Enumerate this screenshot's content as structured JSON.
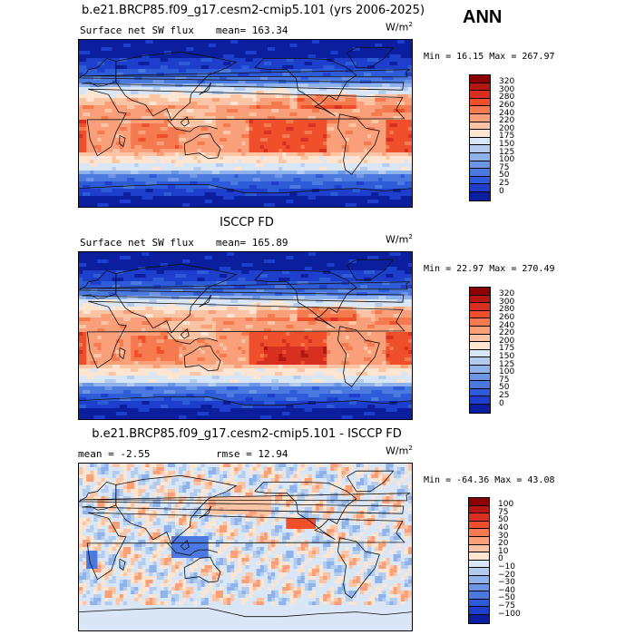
{
  "season": "ANN",
  "panels": [
    {
      "title": "b.e21.BRCP85.f09_g17.cesm2-cmip5.101 (yrs 2006-2025)",
      "left_label": "Surface net SW flux",
      "mean_label": "mean= 163.34",
      "units": "W/m",
      "units_exp": "2",
      "minmax": "Min =  16.15 Max = 267.97",
      "colorbar": {
        "labels": [
          "320",
          "300",
          "280",
          "260",
          "240",
          "220",
          "200",
          "175",
          "150",
          "125",
          "100",
          "75",
          "50",
          "25",
          "0"
        ],
        "colors": [
          "#8b0000",
          "#b2180f",
          "#d73020",
          "#ef4f2a",
          "#f67a50",
          "#f9a07a",
          "#fbc4a4",
          "#fde5d2",
          "#d9e6f5",
          "#b4cdef",
          "#8fb2eb",
          "#6c95e6",
          "#4c79e0",
          "#2e5bd8",
          "#1d3fcc",
          "#0b1f9e"
        ],
        "level_values": [
          320,
          300,
          280,
          260,
          240,
          220,
          200,
          175,
          150,
          125,
          100,
          75,
          50,
          25,
          0
        ]
      }
    },
    {
      "title": "ISCCP FD",
      "left_label": "Surface net SW flux",
      "mean_label": "mean= 165.89",
      "units": "W/m",
      "units_exp": "2",
      "minmax": "Min =  22.97 Max = 270.49",
      "colorbar": {
        "labels": [
          "320",
          "300",
          "280",
          "260",
          "240",
          "220",
          "200",
          "175",
          "150",
          "125",
          "100",
          "75",
          "50",
          "25",
          "0"
        ],
        "colors": [
          "#8b0000",
          "#b2180f",
          "#d73020",
          "#ef4f2a",
          "#f67a50",
          "#f9a07a",
          "#fbc4a4",
          "#fde5d2",
          "#d9e6f5",
          "#b4cdef",
          "#8fb2eb",
          "#6c95e6",
          "#4c79e0",
          "#2e5bd8",
          "#1d3fcc",
          "#0b1f9e"
        ],
        "level_values": [
          320,
          300,
          280,
          260,
          240,
          220,
          200,
          175,
          150,
          125,
          100,
          75,
          50,
          25,
          0
        ]
      }
    },
    {
      "title": "b.e21.BRCP85.f09_g17.cesm2-cmip5.101 - ISCCP FD",
      "left_label": "mean =  -2.55",
      "mean_label": "rmse =  12.94",
      "units": "W/m",
      "units_exp": "2",
      "minmax": "Min = -64.36 Max =  43.08",
      "colorbar": {
        "labels": [
          "100",
          "75",
          "50",
          "40",
          "30",
          "20",
          "10",
          "0",
          "−10",
          "−20",
          "−30",
          "−40",
          "−50",
          "−75",
          "−100"
        ],
        "colors": [
          "#8b0000",
          "#b2180f",
          "#d73020",
          "#ef4f2a",
          "#f67a50",
          "#f9a07a",
          "#fbc4a4",
          "#fde5d2",
          "#d9e6f5",
          "#b4cdef",
          "#8fb2eb",
          "#6c95e6",
          "#4c79e0",
          "#2e5bd8",
          "#1d3fcc",
          "#0b1f9e"
        ],
        "level_values": [
          100,
          75,
          50,
          40,
          30,
          20,
          10,
          0,
          -10,
          -20,
          -30,
          -40,
          -50,
          -75,
          -100
        ]
      }
    }
  ]
}
